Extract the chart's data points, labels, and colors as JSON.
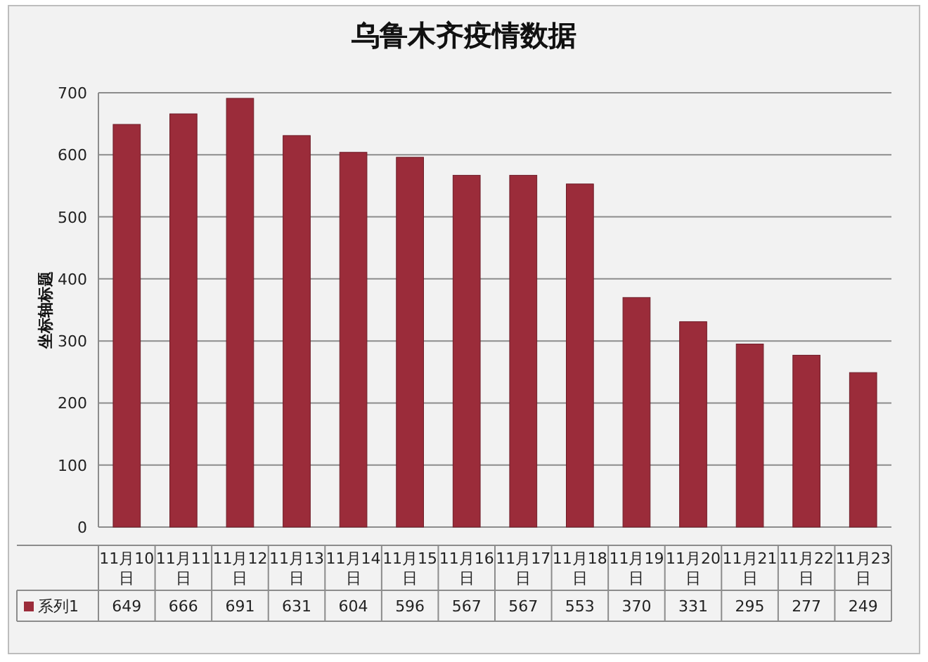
{
  "chart_data": {
    "type": "bar",
    "title": "乌鲁木齐疫情数据",
    "ylabel": "坐标轴标题",
    "categories": [
      "11月10日",
      "11月11日",
      "11月12日",
      "11月13日",
      "11月14日",
      "11月15日",
      "11月16日",
      "11月17日",
      "11月18日",
      "11月19日",
      "11月20日",
      "11月21日",
      "11月22日",
      "11月23日"
    ],
    "series": [
      {
        "name": "系列1",
        "color": "#9b2c3a",
        "values": [
          649,
          666,
          691,
          631,
          604,
          596,
          567,
          567,
          553,
          370,
          331,
          295,
          277,
          249
        ]
      }
    ],
    "ylim": [
      0,
      700
    ],
    "yticks": [
      0,
      100,
      200,
      300,
      400,
      500,
      600,
      700
    ],
    "grid": "y",
    "legend": "bottom",
    "data_labels": true
  }
}
